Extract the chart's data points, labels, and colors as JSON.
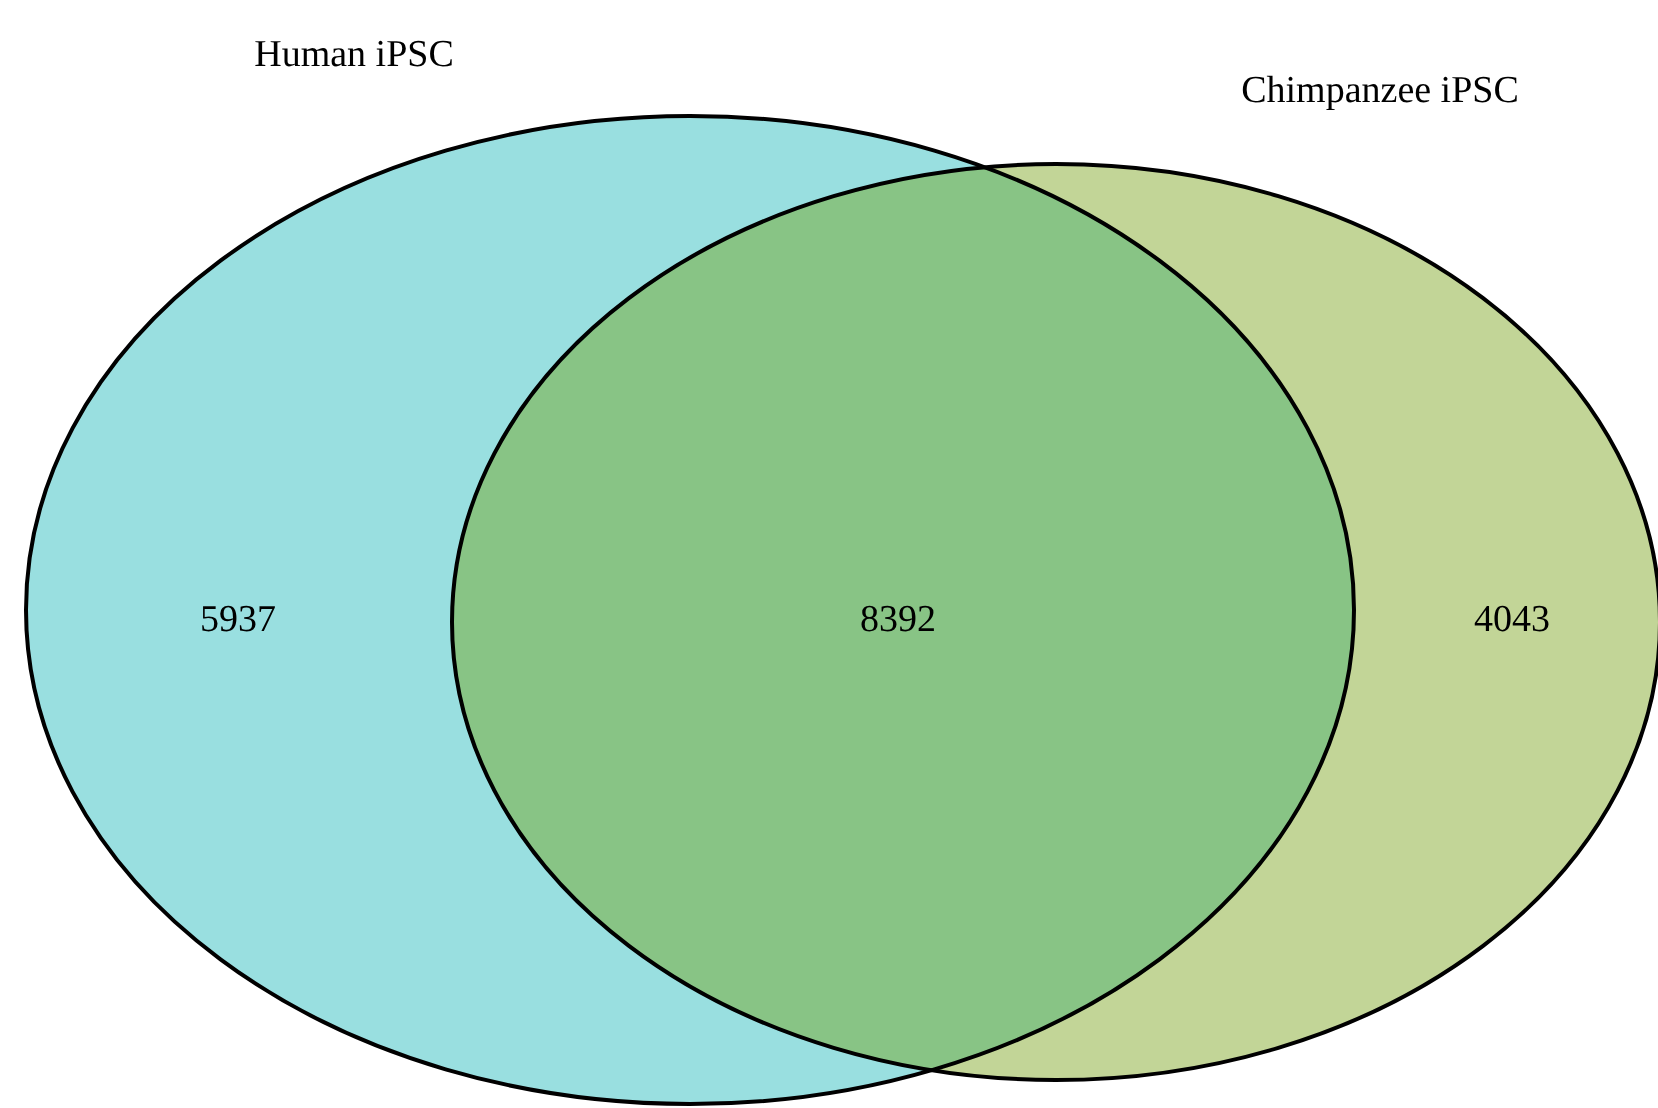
{
  "chart_data": {
    "type": "other",
    "categories": [
      null,
      null,
      null
    ],
    "values": [
      5937,
      8392,
      4043
    ],
    "colors": [
      "#99dfe0",
      "#88c485",
      "#c2d597"
    ],
    "data_labels": true,
    "annotations": [
      "Human iPSC",
      "Chimpanzee iPSC"
    ]
  }
}
